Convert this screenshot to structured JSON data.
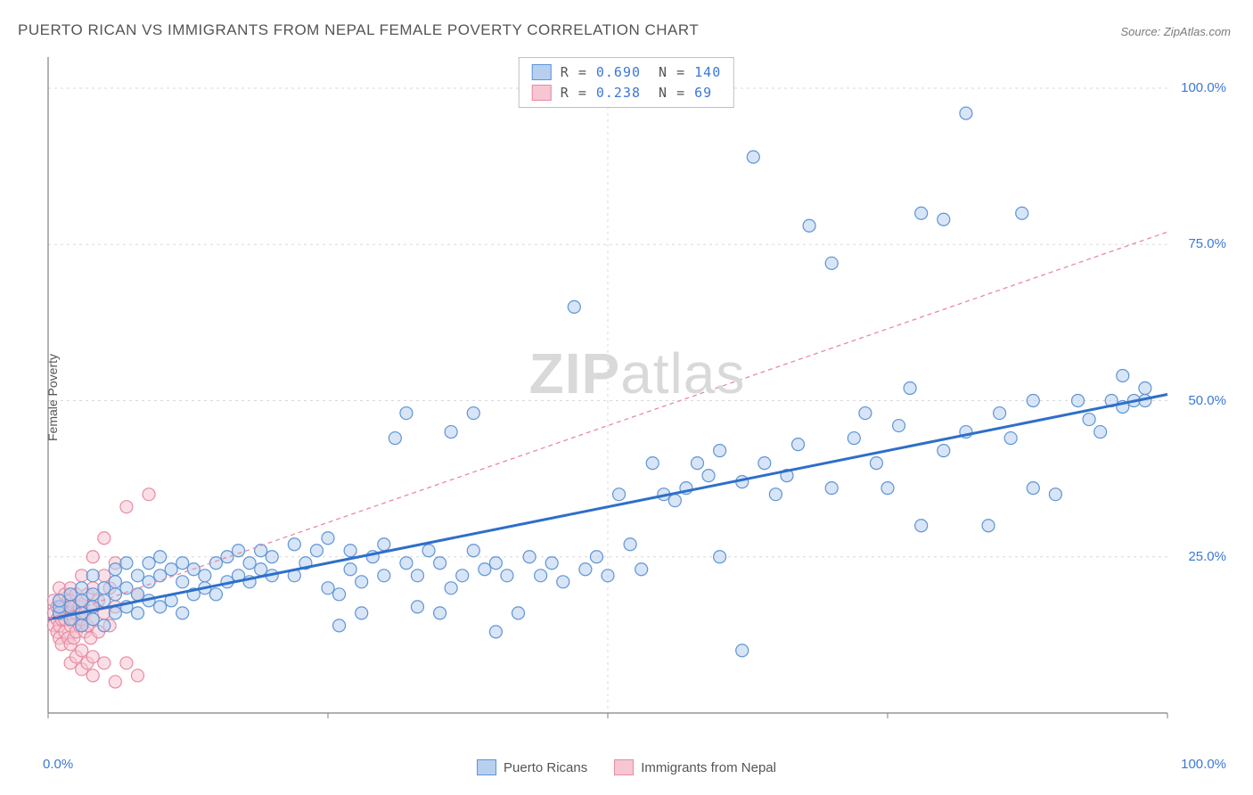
{
  "title": "PUERTO RICAN VS IMMIGRANTS FROM NEPAL FEMALE POVERTY CORRELATION CHART",
  "source": "Source: ZipAtlas.com",
  "y_axis_label": "Female Poverty",
  "watermark_bold": "ZIP",
  "watermark_rest": "atlas",
  "chart": {
    "type": "scatter",
    "xlim": [
      0,
      100
    ],
    "ylim": [
      0,
      105
    ],
    "x_ticks": [
      0,
      50,
      100
    ],
    "x_tick_labels": [
      "0.0%",
      "",
      "100.0%"
    ],
    "y_ticks": [
      25,
      50,
      75,
      100
    ],
    "y_tick_labels": [
      "25.0%",
      "50.0%",
      "75.0%",
      "100.0%"
    ],
    "grid_color": "#d9d9d9",
    "axis_color": "#808080",
    "background": "#ffffff",
    "marker_radius": 7,
    "marker_opacity": 0.55,
    "marker_stroke_width": 1.2,
    "series": [
      {
        "name": "Puerto Ricans",
        "fill": "#b7d0ef",
        "stroke": "#5f94d6",
        "line_color": "#2e6fc9",
        "line_dash": "none",
        "line_width": 3,
        "trend": {
          "x1": 0,
          "y1": 15,
          "x2": 100,
          "y2": 51
        },
        "R": "0.690",
        "N": "140",
        "points": [
          [
            1,
            16
          ],
          [
            1,
            17
          ],
          [
            1,
            18
          ],
          [
            2,
            15
          ],
          [
            2,
            17
          ],
          [
            2,
            19
          ],
          [
            3,
            14
          ],
          [
            3,
            16
          ],
          [
            3,
            18
          ],
          [
            3,
            20
          ],
          [
            4,
            15
          ],
          [
            4,
            17
          ],
          [
            4,
            19
          ],
          [
            4,
            22
          ],
          [
            5,
            14
          ],
          [
            5,
            18
          ],
          [
            5,
            20
          ],
          [
            6,
            16
          ],
          [
            6,
            19
          ],
          [
            6,
            21
          ],
          [
            6,
            23
          ],
          [
            7,
            17
          ],
          [
            7,
            20
          ],
          [
            7,
            24
          ],
          [
            8,
            16
          ],
          [
            8,
            19
          ],
          [
            8,
            22
          ],
          [
            9,
            18
          ],
          [
            9,
            21
          ],
          [
            9,
            24
          ],
          [
            10,
            17
          ],
          [
            10,
            22
          ],
          [
            10,
            25
          ],
          [
            11,
            18
          ],
          [
            11,
            23
          ],
          [
            12,
            16
          ],
          [
            12,
            21
          ],
          [
            12,
            24
          ],
          [
            13,
            19
          ],
          [
            13,
            23
          ],
          [
            14,
            20
          ],
          [
            14,
            22
          ],
          [
            15,
            19
          ],
          [
            15,
            24
          ],
          [
            16,
            21
          ],
          [
            16,
            25
          ],
          [
            17,
            22
          ],
          [
            17,
            26
          ],
          [
            18,
            21
          ],
          [
            18,
            24
          ],
          [
            19,
            23
          ],
          [
            19,
            26
          ],
          [
            20,
            22
          ],
          [
            20,
            25
          ],
          [
            22,
            22
          ],
          [
            22,
            27
          ],
          [
            23,
            24
          ],
          [
            24,
            26
          ],
          [
            25,
            20
          ],
          [
            25,
            28
          ],
          [
            26,
            14
          ],
          [
            26,
            19
          ],
          [
            27,
            23
          ],
          [
            27,
            26
          ],
          [
            28,
            16
          ],
          [
            28,
            21
          ],
          [
            29,
            25
          ],
          [
            30,
            22
          ],
          [
            30,
            27
          ],
          [
            31,
            44
          ],
          [
            32,
            24
          ],
          [
            32,
            48
          ],
          [
            33,
            17
          ],
          [
            33,
            22
          ],
          [
            34,
            26
          ],
          [
            35,
            16
          ],
          [
            35,
            24
          ],
          [
            36,
            20
          ],
          [
            36,
            45
          ],
          [
            37,
            22
          ],
          [
            38,
            26
          ],
          [
            38,
            48
          ],
          [
            39,
            23
          ],
          [
            40,
            13
          ],
          [
            40,
            24
          ],
          [
            41,
            22
          ],
          [
            42,
            16
          ],
          [
            43,
            25
          ],
          [
            44,
            22
          ],
          [
            45,
            24
          ],
          [
            46,
            21
          ],
          [
            47,
            65
          ],
          [
            48,
            23
          ],
          [
            49,
            25
          ],
          [
            50,
            22
          ],
          [
            51,
            35
          ],
          [
            52,
            27
          ],
          [
            53,
            23
          ],
          [
            54,
            40
          ],
          [
            55,
            35
          ],
          [
            56,
            34
          ],
          [
            57,
            36
          ],
          [
            58,
            40
          ],
          [
            59,
            38
          ],
          [
            60,
            25
          ],
          [
            60,
            42
          ],
          [
            62,
            10
          ],
          [
            62,
            37
          ],
          [
            63,
            89
          ],
          [
            64,
            40
          ],
          [
            65,
            35
          ],
          [
            66,
            38
          ],
          [
            67,
            43
          ],
          [
            68,
            78
          ],
          [
            70,
            36
          ],
          [
            70,
            72
          ],
          [
            72,
            44
          ],
          [
            73,
            48
          ],
          [
            74,
            40
          ],
          [
            75,
            36
          ],
          [
            76,
            46
          ],
          [
            77,
            52
          ],
          [
            78,
            30
          ],
          [
            78,
            80
          ],
          [
            80,
            42
          ],
          [
            80,
            79
          ],
          [
            82,
            45
          ],
          [
            82,
            96
          ],
          [
            84,
            30
          ],
          [
            85,
            48
          ],
          [
            86,
            44
          ],
          [
            87,
            80
          ],
          [
            88,
            36
          ],
          [
            88,
            50
          ],
          [
            90,
            35
          ],
          [
            92,
            50
          ],
          [
            93,
            47
          ],
          [
            94,
            45
          ],
          [
            95,
            50
          ],
          [
            96,
            49
          ],
          [
            96,
            54
          ],
          [
            97,
            50
          ],
          [
            98,
            50
          ],
          [
            98,
            52
          ]
        ]
      },
      {
        "name": "Immigrants from Nepal",
        "fill": "#f6c6d2",
        "stroke": "#e88aa3",
        "line_color": "#e88aa3",
        "line_dash": "5,4",
        "line_width": 1.3,
        "trend": {
          "x1": 0,
          "y1": 15,
          "x2": 100,
          "y2": 77
        },
        "R": "0.238",
        "N": "  69",
        "points": [
          [
            0.5,
            14
          ],
          [
            0.5,
            16
          ],
          [
            0.5,
            18
          ],
          [
            0.8,
            13
          ],
          [
            0.8,
            15
          ],
          [
            0.8,
            17
          ],
          [
            1,
            12
          ],
          [
            1,
            14
          ],
          [
            1,
            16
          ],
          [
            1,
            18
          ],
          [
            1,
            20
          ],
          [
            1.2,
            11
          ],
          [
            1.2,
            15
          ],
          [
            1.2,
            17
          ],
          [
            1.5,
            13
          ],
          [
            1.5,
            15
          ],
          [
            1.5,
            17
          ],
          [
            1.5,
            19
          ],
          [
            1.8,
            12
          ],
          [
            1.8,
            16
          ],
          [
            1.8,
            18
          ],
          [
            2,
            8
          ],
          [
            2,
            11
          ],
          [
            2,
            14
          ],
          [
            2,
            16
          ],
          [
            2,
            18
          ],
          [
            2,
            20
          ],
          [
            2.3,
            12
          ],
          [
            2.3,
            15
          ],
          [
            2.3,
            17
          ],
          [
            2.5,
            9
          ],
          [
            2.5,
            13
          ],
          [
            2.5,
            16
          ],
          [
            2.5,
            19
          ],
          [
            2.8,
            14
          ],
          [
            2.8,
            17
          ],
          [
            3,
            7
          ],
          [
            3,
            10
          ],
          [
            3,
            15
          ],
          [
            3,
            18
          ],
          [
            3,
            22
          ],
          [
            3.3,
            13
          ],
          [
            3.3,
            16
          ],
          [
            3.5,
            8
          ],
          [
            3.5,
            14
          ],
          [
            3.5,
            19
          ],
          [
            3.8,
            12
          ],
          [
            3.8,
            17
          ],
          [
            4,
            6
          ],
          [
            4,
            9
          ],
          [
            4,
            15
          ],
          [
            4,
            20
          ],
          [
            4,
            25
          ],
          [
            4.5,
            13
          ],
          [
            4.5,
            18
          ],
          [
            5,
            8
          ],
          [
            5,
            16
          ],
          [
            5,
            22
          ],
          [
            5,
            28
          ],
          [
            5.5,
            14
          ],
          [
            5.5,
            20
          ],
          [
            6,
            5
          ],
          [
            6,
            17
          ],
          [
            6,
            24
          ],
          [
            7,
            8
          ],
          [
            7,
            33
          ],
          [
            8,
            6
          ],
          [
            8,
            19
          ],
          [
            9,
            35
          ]
        ]
      }
    ]
  },
  "legend_bottom": [
    {
      "label": "Puerto Ricans",
      "fill": "#b7d0ef",
      "stroke": "#5f94d6"
    },
    {
      "label": "Immigrants from Nepal",
      "fill": "#f6c6d2",
      "stroke": "#e88aa3"
    }
  ]
}
